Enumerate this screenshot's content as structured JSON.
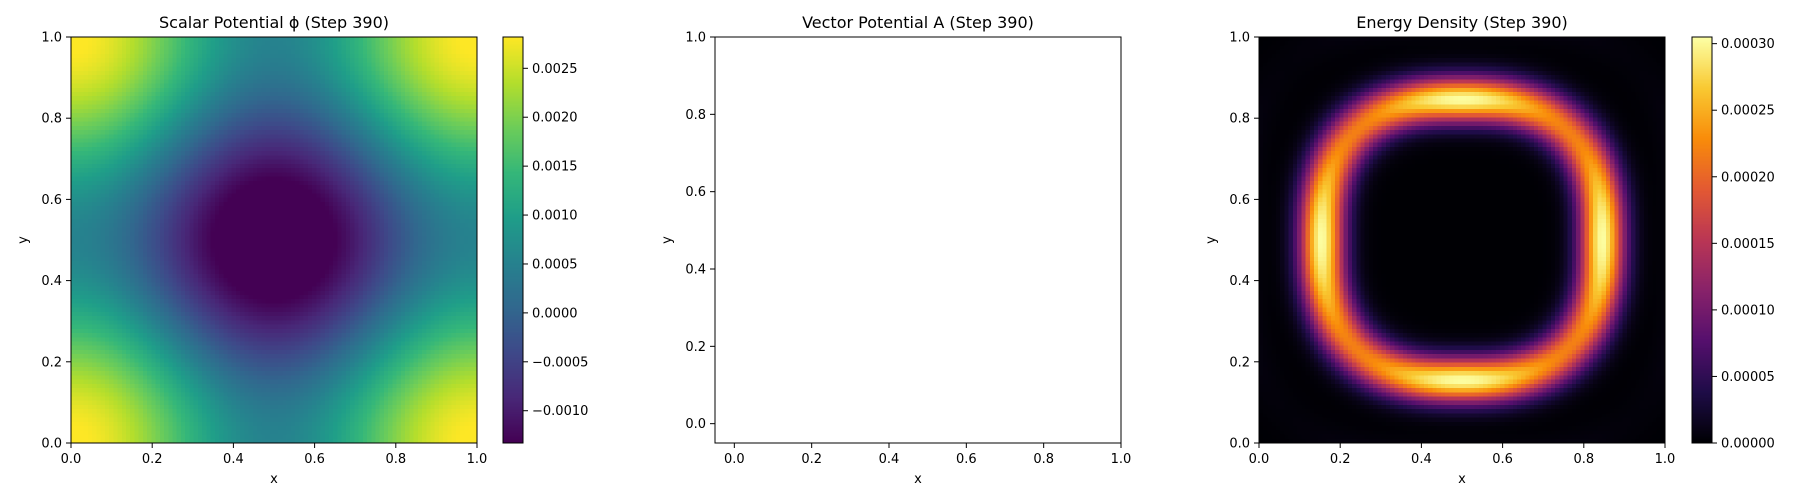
{
  "chart_data": [
    {
      "type": "heatmap",
      "title": "Scalar Potential ϕ (Step 390)",
      "xlabel": "x",
      "ylabel": "y",
      "xlim": [
        0.0,
        1.0
      ],
      "ylim": [
        0.0,
        1.0
      ],
      "xticks": [
        "0.0",
        "0.2",
        "0.4",
        "0.6",
        "0.8",
        "1.0"
      ],
      "yticks": [
        "0.0",
        "0.2",
        "0.4",
        "0.6",
        "0.8",
        "1.0"
      ],
      "colormap": "viridis",
      "field": "standing-wave mode cos(2πx)+cos(2πy): low ring around center, high at edge midpoints",
      "colorbar": {
        "vmin": -0.00133,
        "vmax": 0.00282,
        "ticks": [
          -0.001,
          -0.0005,
          0.0,
          0.0005,
          0.001,
          0.0015,
          0.002,
          0.0025
        ],
        "tick_labels": [
          "−0.0010",
          "−0.0005",
          "0.0000",
          "0.0005",
          "0.0010",
          "0.0015",
          "0.0020",
          "0.0025"
        ]
      }
    },
    {
      "type": "line",
      "title": "Vector Potential A (Step 390)",
      "xlabel": "x",
      "ylabel": "y",
      "xlim": [
        -0.05,
        1.0
      ],
      "ylim": [
        -0.05,
        1.0
      ],
      "xticks": [
        "0.0",
        "0.2",
        "0.4",
        "0.6",
        "0.8",
        "1.0"
      ],
      "yticks": [
        "0.0",
        "0.2",
        "0.4",
        "0.6",
        "0.8",
        "1.0"
      ],
      "series": []
    },
    {
      "type": "heatmap",
      "title": "Energy Density (Step 390)",
      "xlabel": "x",
      "ylabel": "y",
      "xlim": [
        0.0,
        1.0
      ],
      "ylim": [
        0.0,
        1.0
      ],
      "xticks": [
        "0.0",
        "0.2",
        "0.4",
        "0.6",
        "0.8",
        "1.0"
      ],
      "yticks": [
        "0.0",
        "0.2",
        "0.4",
        "0.6",
        "0.8",
        "1.0"
      ],
      "colormap": "inferno",
      "field": "bright rounded-square ring of radius ~0.35 around (0.5,0.5), dark center, faint outer ripples",
      "colorbar": {
        "vmin": 0.0,
        "vmax": 0.000305,
        "ticks": [
          0.0,
          5e-05,
          0.0001,
          0.00015,
          0.0002,
          0.00025,
          0.0003
        ],
        "tick_labels": [
          "0.00000",
          "0.00005",
          "0.00010",
          "0.00015",
          "0.00020",
          "0.00025",
          "0.00030"
        ]
      }
    }
  ]
}
